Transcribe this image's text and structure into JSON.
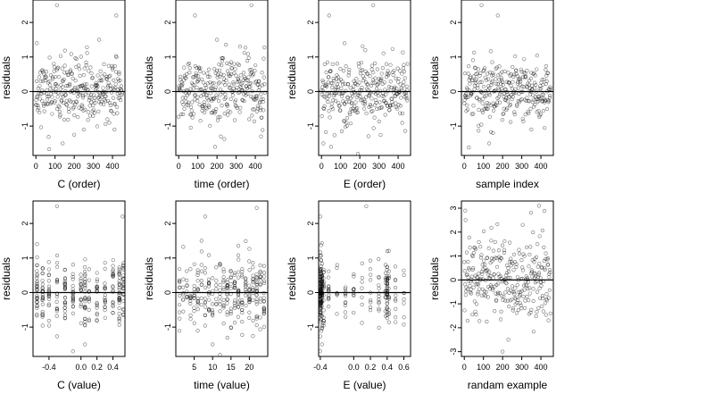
{
  "figure": {
    "layout": {
      "rows": 2,
      "cols": 4
    }
  },
  "chart_data": [
    {
      "type": "scatter",
      "xlabel": "C (order)",
      "ylabel": "residuals",
      "xlim": [
        -15,
        465
      ],
      "ylim": [
        -1.85,
        2.65
      ],
      "xticks": [
        0,
        100,
        200,
        300,
        400
      ],
      "xtick_labels": [
        "0",
        "100",
        "200",
        "300",
        "400"
      ],
      "yticks": [
        -1,
        0,
        1,
        2
      ],
      "ytick_labels": [
        "-1",
        "0",
        "1",
        "2"
      ],
      "hline": 0,
      "x_pattern": "order",
      "n": 300,
      "seed": 11,
      "sd": 0.52,
      "points_hint": [
        [
          110,
          2.5
        ],
        [
          420,
          2.2
        ],
        [
          5,
          1.4
        ],
        [
          330,
          1.5
        ],
        [
          140,
          -1.5
        ],
        [
          200,
          -1.25
        ],
        [
          250,
          -1.1
        ]
      ]
    },
    {
      "type": "scatter",
      "xlabel": "time (order)",
      "ylabel": "residuals",
      "xlim": [
        -15,
        465
      ],
      "ylim": [
        -1.85,
        2.65
      ],
      "xticks": [
        0,
        100,
        200,
        300,
        400
      ],
      "xtick_labels": [
        "0",
        "100",
        "200",
        "300",
        "400"
      ],
      "yticks": [
        -1,
        0,
        1,
        2
      ],
      "ytick_labels": [
        "-1",
        "0",
        "1",
        "2"
      ],
      "hline": 0,
      "x_pattern": "order",
      "n": 300,
      "seed": 23,
      "sd": 0.55,
      "points_hint": [
        [
          85,
          2.2
        ],
        [
          380,
          2.5
        ],
        [
          200,
          1.5
        ],
        [
          320,
          1.3
        ],
        [
          190,
          -1.6
        ],
        [
          220,
          -1.3
        ],
        [
          430,
          -1.3
        ]
      ]
    },
    {
      "type": "scatter",
      "xlabel": "E (order)",
      "ylabel": "residuals",
      "xlim": [
        -15,
        465
      ],
      "ylim": [
        -1.85,
        2.65
      ],
      "xticks": [
        0,
        100,
        200,
        300,
        400
      ],
      "xtick_labels": [
        "0",
        "100",
        "200",
        "300",
        "400"
      ],
      "yticks": [
        -1,
        0,
        1,
        2
      ],
      "ytick_labels": [
        "-1",
        "0",
        "1",
        "2"
      ],
      "hline": 0,
      "x_pattern": "order",
      "n": 300,
      "seed": 37,
      "sd": 0.55,
      "points_hint": [
        [
          40,
          2.2
        ],
        [
          270,
          2.5
        ],
        [
          120,
          1.4
        ],
        [
          10,
          -1.5
        ],
        [
          50,
          -1.6
        ],
        [
          190,
          -1.8
        ]
      ]
    },
    {
      "type": "scatter",
      "xlabel": "sample index",
      "ylabel": "residuals",
      "xlim": [
        -15,
        465
      ],
      "ylim": [
        -1.85,
        2.65
      ],
      "xticks": [
        0,
        100,
        200,
        300,
        400
      ],
      "xtick_labels": [
        "0",
        "100",
        "200",
        "300",
        "400"
      ],
      "yticks": [
        -1,
        0,
        1,
        2
      ],
      "ytick_labels": [
        "-1",
        "0",
        "1",
        "2"
      ],
      "hline": 0,
      "x_pattern": "order",
      "n": 300,
      "seed": 41,
      "sd": 0.52,
      "points_hint": [
        [
          90,
          2.5
        ],
        [
          175,
          2.2
        ],
        [
          130,
          -1.5
        ],
        [
          150,
          -1.2
        ],
        [
          350,
          -1.1
        ]
      ]
    },
    {
      "type": "scatter",
      "xlabel": "C (value)",
      "ylabel": "residuals",
      "xlim": [
        -0.6,
        0.55
      ],
      "ylim": [
        -1.85,
        2.65
      ],
      "xticks": [
        -0.4,
        0.0,
        0.2,
        0.4
      ],
      "xtick_labels": [
        "-0.4",
        "0.0",
        "0.2",
        "0.4"
      ],
      "yticks": [
        -1,
        0,
        1,
        2
      ],
      "ytick_labels": [
        "-1",
        "0",
        "1",
        "2"
      ],
      "hline": 0,
      "x_pattern": "levels",
      "levels": [
        -0.55,
        -0.48,
        -0.4,
        -0.3,
        -0.2,
        -0.1,
        0.0,
        0.05,
        0.1,
        0.2,
        0.3,
        0.4,
        0.48,
        0.53
      ],
      "n": 300,
      "seed": 53,
      "sd": 0.52,
      "points_hint": [
        [
          -0.3,
          2.5
        ],
        [
          0.52,
          2.2
        ],
        [
          -0.55,
          1.4
        ],
        [
          -0.1,
          -1.7
        ],
        [
          0.05,
          -1.5
        ]
      ]
    },
    {
      "type": "scatter",
      "xlabel": "time (value)",
      "ylabel": "residuals",
      "xlim": [
        0,
        25
      ],
      "ylim": [
        -1.85,
        2.65
      ],
      "xticks": [
        5,
        10,
        15,
        20
      ],
      "xtick_labels": [
        "5",
        "10",
        "15",
        "20"
      ],
      "yticks": [
        -1,
        0,
        1,
        2
      ],
      "ytick_labels": [
        "-1",
        "0",
        "1",
        "2"
      ],
      "hline": 0,
      "x_pattern": "levels",
      "levels": [
        1,
        2,
        3,
        4,
        5,
        6,
        7,
        8,
        9,
        10,
        11,
        12,
        13,
        14,
        15,
        16,
        17,
        18,
        19,
        20,
        21,
        22,
        23,
        24
      ],
      "n": 300,
      "seed": 67,
      "sd": 0.55,
      "points_hint": [
        [
          8,
          2.2
        ],
        [
          22,
          2.45
        ],
        [
          7,
          1.5
        ],
        [
          17,
          1.35
        ],
        [
          12,
          -1.8
        ],
        [
          10,
          -1.5
        ]
      ]
    },
    {
      "type": "scatter",
      "xlabel": "E (value)",
      "ylabel": "residuals",
      "xlim": [
        -0.42,
        0.68
      ],
      "ylim": [
        -1.85,
        2.65
      ],
      "xticks": [
        -0.4,
        0.0,
        0.2,
        0.4,
        0.6
      ],
      "xtick_labels": [
        "-0.4",
        "0.0",
        "0.2",
        "0.4",
        "0.6"
      ],
      "yticks": [
        -1,
        0,
        1,
        2
      ],
      "ytick_labels": [
        "-1",
        "0",
        "1",
        "2"
      ],
      "hline": 0,
      "x_pattern": "levels",
      "levels": [
        -0.4,
        -0.39,
        -0.38,
        -0.36,
        -0.3,
        -0.2,
        -0.1,
        0.0,
        0.1,
        0.2,
        0.3,
        0.38,
        0.4,
        0.42,
        0.5,
        0.6
      ],
      "level_weights": [
        10,
        8,
        6,
        4,
        2,
        2,
        2,
        2,
        2,
        2,
        2,
        3,
        5,
        3,
        2,
        1
      ],
      "n": 300,
      "seed": 79,
      "sd": 0.55,
      "points_hint": [
        [
          -0.4,
          2.2
        ],
        [
          0.15,
          2.5
        ],
        [
          -0.4,
          -1.7
        ],
        [
          -0.38,
          -1.5
        ]
      ]
    },
    {
      "type": "scatter",
      "xlabel": "randam example",
      "ylabel": "residuals",
      "xlim": [
        -15,
        465
      ],
      "ylim": [
        -3.2,
        3.3
      ],
      "xticks": [
        0,
        100,
        200,
        300,
        400
      ],
      "xtick_labels": [
        "0",
        "100",
        "200",
        "300",
        "400"
      ],
      "yticks": [
        -3,
        -2,
        -1,
        0,
        1,
        2,
        3
      ],
      "ytick_labels": [
        "-3",
        "-2",
        "-1",
        "0",
        "1",
        "2",
        "3"
      ],
      "hline": 0,
      "x_pattern": "order",
      "n": 300,
      "seed": 97,
      "sd": 1.0,
      "points_hint": [
        [
          390,
          3.1
        ],
        [
          5,
          2.9
        ],
        [
          200,
          -3.0
        ],
        [
          230,
          -2.5
        ]
      ]
    }
  ]
}
